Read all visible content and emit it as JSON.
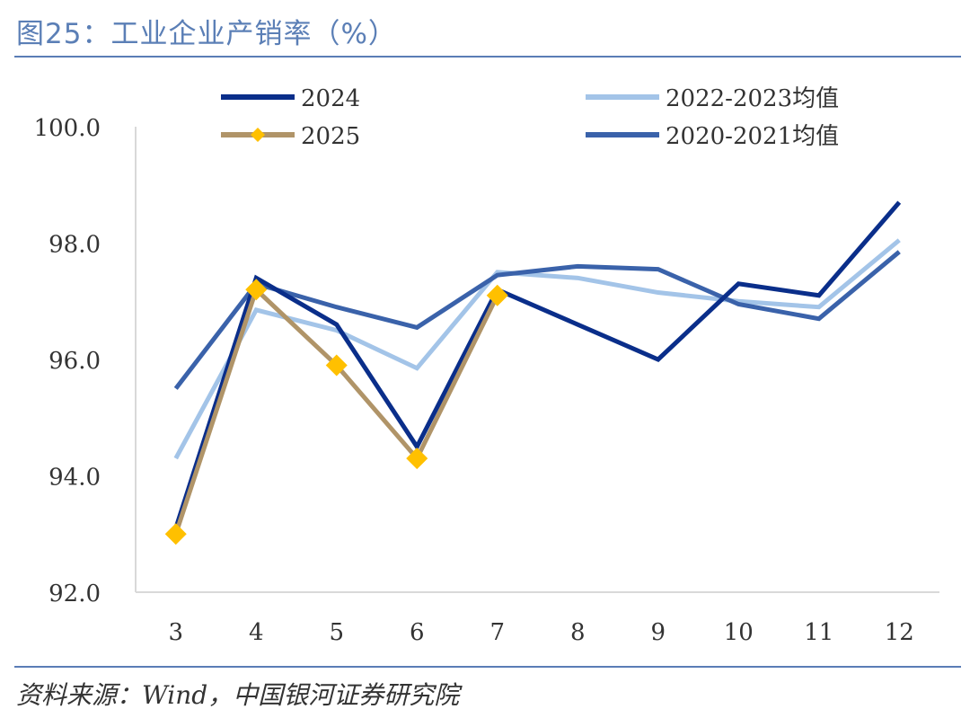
{
  "header": {
    "title": "图25：工业企业产销率（%）"
  },
  "footer": {
    "source": "资料来源：Wind，中国银河证券研究院"
  },
  "chart_data": {
    "type": "line",
    "title": "图25：工业企业产销率（%）",
    "xlabel": "",
    "ylabel": "",
    "categories": [
      "3",
      "4",
      "5",
      "6",
      "7",
      "8",
      "9",
      "10",
      "11",
      "12"
    ],
    "ylim": [
      92.0,
      100.0
    ],
    "yticks": [
      "92.0",
      "94.0",
      "96.0",
      "98.0",
      "100.0"
    ],
    "grid": false,
    "legend_placement": "top",
    "series": [
      {
        "name": "2024",
        "color": "#0a2e8a",
        "marker": "none",
        "values": [
          93.1,
          97.4,
          96.6,
          94.5,
          97.2,
          96.6,
          96.0,
          97.3,
          97.1,
          98.7
        ]
      },
      {
        "name": "2025",
        "color": "#b09468",
        "marker": "diamond",
        "marker_color": "#ffc000",
        "values": [
          93.0,
          97.2,
          95.9,
          94.3,
          97.1,
          null,
          null,
          null,
          null,
          null
        ]
      },
      {
        "name": "2022-2023均值",
        "color": "#a3c4e8",
        "marker": "none",
        "values": [
          94.3,
          96.85,
          96.5,
          95.85,
          97.5,
          97.4,
          97.15,
          97.0,
          96.9,
          98.05
        ]
      },
      {
        "name": "2020-2021均值",
        "color": "#3a62aa",
        "marker": "none",
        "values": [
          95.5,
          97.3,
          96.9,
          96.55,
          97.45,
          97.6,
          97.55,
          96.95,
          96.7,
          97.85
        ]
      }
    ]
  }
}
